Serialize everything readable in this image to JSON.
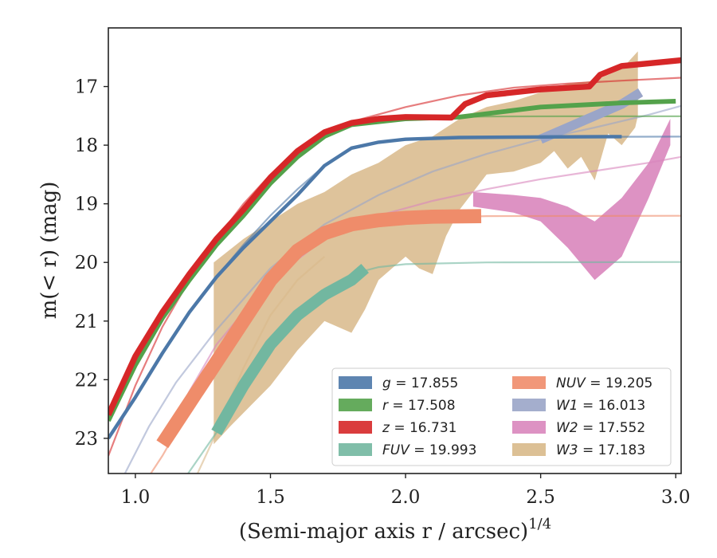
{
  "chart_data": {
    "type": "line",
    "title": "",
    "xlabel": "(Semi-major axis r / arcsec)",
    "xlabel_exponent": "1/4",
    "ylabel": "m(< r) (mag)",
    "xlim": [
      0.9,
      3.02
    ],
    "ylim": [
      23.6,
      16.0
    ],
    "y_inverted": true,
    "grid": false,
    "legend_position": "lower-right",
    "legend_columns": 2,
    "x_ticks": [
      1.0,
      1.5,
      2.0,
      2.5,
      3.0
    ],
    "x_tick_labels": [
      "1.0",
      "1.5",
      "2.0",
      "2.5",
      "3.0"
    ],
    "y_ticks": [
      17,
      18,
      19,
      20,
      21,
      22,
      23
    ],
    "y_tick_labels": [
      "17",
      "18",
      "19",
      "20",
      "21",
      "22",
      "23"
    ],
    "series": [
      {
        "band": "g",
        "name": "g = 17.855",
        "legend_var": "g",
        "legend_value": "= 17.855",
        "color": "#4c78a8",
        "data": [
          [
            0.9,
            23.0
          ],
          [
            1.0,
            22.3
          ],
          [
            1.1,
            21.55
          ],
          [
            1.2,
            20.85
          ],
          [
            1.3,
            20.25
          ],
          [
            1.4,
            19.75
          ],
          [
            1.5,
            19.3
          ],
          [
            1.6,
            18.85
          ],
          [
            1.7,
            18.35
          ],
          [
            1.8,
            18.05
          ],
          [
            1.9,
            17.95
          ],
          [
            2.0,
            17.9
          ],
          [
            2.2,
            17.87
          ],
          [
            2.5,
            17.86
          ],
          [
            2.8,
            17.855
          ]
        ],
        "band_width": 0.03,
        "model": [
          [
            0.9,
            23.0
          ],
          [
            1.0,
            22.3
          ],
          [
            1.1,
            21.55
          ],
          [
            1.2,
            20.85
          ],
          [
            1.3,
            20.25
          ],
          [
            1.4,
            19.7
          ],
          [
            1.5,
            19.2
          ],
          [
            1.6,
            18.75
          ],
          [
            1.7,
            18.35
          ],
          [
            1.8,
            18.05
          ],
          [
            1.9,
            17.95
          ],
          [
            2.0,
            17.9
          ],
          [
            2.3,
            17.87
          ],
          [
            2.6,
            17.86
          ],
          [
            3.02,
            17.855
          ]
        ]
      },
      {
        "band": "r",
        "name": "r = 17.508",
        "legend_var": "r",
        "legend_value": "= 17.508",
        "color": "#54a24b",
        "data": [
          [
            0.9,
            22.7
          ],
          [
            1.0,
            21.75
          ],
          [
            1.1,
            20.95
          ],
          [
            1.2,
            20.3
          ],
          [
            1.3,
            19.7
          ],
          [
            1.4,
            19.2
          ],
          [
            1.5,
            18.65
          ],
          [
            1.6,
            18.2
          ],
          [
            1.7,
            17.85
          ],
          [
            1.8,
            17.65
          ],
          [
            1.9,
            17.6
          ],
          [
            2.0,
            17.55
          ],
          [
            2.2,
            17.52
          ],
          [
            2.5,
            17.35
          ],
          [
            2.8,
            17.28
          ],
          [
            3.0,
            17.25
          ]
        ],
        "band_width": 0.04,
        "model": [
          [
            0.9,
            22.7
          ],
          [
            1.0,
            21.75
          ],
          [
            1.1,
            20.95
          ],
          [
            1.2,
            20.25
          ],
          [
            1.3,
            19.65
          ],
          [
            1.4,
            19.1
          ],
          [
            1.5,
            18.6
          ],
          [
            1.6,
            18.15
          ],
          [
            1.7,
            17.85
          ],
          [
            1.8,
            17.65
          ],
          [
            1.9,
            17.57
          ],
          [
            2.0,
            17.53
          ],
          [
            2.3,
            17.51
          ],
          [
            2.6,
            17.508
          ],
          [
            3.02,
            17.508
          ]
        ]
      },
      {
        "band": "z",
        "name": "z = 16.731",
        "legend_var": "z",
        "legend_value": "= 16.731",
        "color": "#d62728",
        "data": [
          [
            0.9,
            22.6
          ],
          [
            1.0,
            21.6
          ],
          [
            1.1,
            20.85
          ],
          [
            1.2,
            20.2
          ],
          [
            1.3,
            19.6
          ],
          [
            1.4,
            19.1
          ],
          [
            1.5,
            18.55
          ],
          [
            1.6,
            18.1
          ],
          [
            1.7,
            17.78
          ],
          [
            1.8,
            17.62
          ],
          [
            1.9,
            17.55
          ],
          [
            2.0,
            17.52
          ],
          [
            2.17,
            17.53
          ],
          [
            2.22,
            17.3
          ],
          [
            2.3,
            17.15
          ],
          [
            2.5,
            17.05
          ],
          [
            2.68,
            17.0
          ],
          [
            2.72,
            16.8
          ],
          [
            2.8,
            16.65
          ],
          [
            3.02,
            16.55
          ]
        ],
        "band_width": 0.05,
        "model": [
          [
            0.9,
            23.3
          ],
          [
            1.0,
            22.1
          ],
          [
            1.1,
            21.1
          ],
          [
            1.2,
            20.3
          ],
          [
            1.3,
            19.6
          ],
          [
            1.4,
            19.0
          ],
          [
            1.5,
            18.5
          ],
          [
            1.6,
            18.1
          ],
          [
            1.7,
            17.8
          ],
          [
            1.8,
            17.6
          ],
          [
            2.0,
            17.35
          ],
          [
            2.2,
            17.15
          ],
          [
            2.4,
            17.02
          ],
          [
            2.6,
            16.95
          ],
          [
            2.8,
            16.9
          ],
          [
            3.02,
            16.85
          ]
        ]
      },
      {
        "band": "FUV",
        "name": "FUV = 19.993",
        "legend_var": "FUV",
        "legend_value": "= 19.993",
        "color": "#72b7a0",
        "data": [
          [
            1.3,
            22.9
          ],
          [
            1.4,
            22.1
          ],
          [
            1.5,
            21.4
          ],
          [
            1.6,
            20.9
          ],
          [
            1.7,
            20.55
          ],
          [
            1.8,
            20.3
          ],
          [
            1.85,
            20.1
          ]
        ],
        "band_width": 0.1,
        "model": [
          [
            1.15,
            23.9
          ],
          [
            1.3,
            22.9
          ],
          [
            1.4,
            22.0
          ],
          [
            1.5,
            21.3
          ],
          [
            1.6,
            20.8
          ],
          [
            1.7,
            20.45
          ],
          [
            1.8,
            20.2
          ],
          [
            1.9,
            20.08
          ],
          [
            2.0,
            20.03
          ],
          [
            2.3,
            20.0
          ],
          [
            3.02,
            19.993
          ]
        ]
      },
      {
        "band": "NUV",
        "name": "NUV = 19.205",
        "legend_var": "NUV",
        "legend_value": "= 19.205",
        "color": "#ef8c6a",
        "data": [
          [
            1.1,
            23.1
          ],
          [
            1.2,
            22.4
          ],
          [
            1.3,
            21.7
          ],
          [
            1.4,
            21.0
          ],
          [
            1.5,
            20.3
          ],
          [
            1.6,
            19.8
          ],
          [
            1.7,
            19.5
          ],
          [
            1.8,
            19.35
          ],
          [
            1.9,
            19.28
          ],
          [
            2.0,
            19.24
          ],
          [
            2.1,
            19.22
          ],
          [
            2.28,
            19.21
          ]
        ],
        "band_width": 0.12,
        "model": [
          [
            1.0,
            24.0
          ],
          [
            1.1,
            23.3
          ],
          [
            1.2,
            22.5
          ],
          [
            1.3,
            21.7
          ],
          [
            1.4,
            21.0
          ],
          [
            1.5,
            20.35
          ],
          [
            1.6,
            19.85
          ],
          [
            1.7,
            19.55
          ],
          [
            1.8,
            19.38
          ],
          [
            2.0,
            19.25
          ],
          [
            2.3,
            19.21
          ],
          [
            3.02,
            19.205
          ]
        ]
      },
      {
        "band": "W1",
        "name": "W1 = 16.013",
        "legend_var": "W1",
        "legend_value": "= 16.013",
        "color": "#9aa5c8",
        "data": [
          [
            2.5,
            17.9
          ],
          [
            2.6,
            17.7
          ],
          [
            2.7,
            17.5
          ],
          [
            2.8,
            17.3
          ],
          [
            2.87,
            17.1
          ]
        ],
        "band_width": 0.08,
        "model": [
          [
            0.95,
            23.7
          ],
          [
            1.05,
            22.8
          ],
          [
            1.15,
            22.05
          ],
          [
            1.3,
            21.15
          ],
          [
            1.5,
            20.1
          ],
          [
            1.7,
            19.35
          ],
          [
            1.9,
            18.85
          ],
          [
            2.1,
            18.45
          ],
          [
            2.3,
            18.15
          ],
          [
            2.5,
            17.9
          ],
          [
            2.7,
            17.7
          ],
          [
            2.9,
            17.48
          ],
          [
            3.02,
            17.33
          ]
        ]
      },
      {
        "band": "W2",
        "name": "W2 = 17.552",
        "legend_var": "W2",
        "legend_value": "= 17.552",
        "color": "#d986bd",
        "upper": [
          [
            2.25,
            18.8
          ],
          [
            2.4,
            18.85
          ],
          [
            2.5,
            18.9
          ],
          [
            2.6,
            19.05
          ],
          [
            2.7,
            19.3
          ],
          [
            2.8,
            18.9
          ],
          [
            2.9,
            18.3
          ],
          [
            2.98,
            17.55
          ]
        ],
        "lower": [
          [
            2.25,
            19.05
          ],
          [
            2.4,
            19.15
          ],
          [
            2.5,
            19.3
          ],
          [
            2.6,
            19.75
          ],
          [
            2.7,
            20.3
          ],
          [
            2.8,
            19.9
          ],
          [
            2.9,
            18.9
          ],
          [
            2.98,
            18.0
          ]
        ],
        "model": [
          [
            1.1,
            23.1
          ],
          [
            1.2,
            22.2
          ],
          [
            1.3,
            21.4
          ],
          [
            1.5,
            20.3
          ],
          [
            1.7,
            19.6
          ],
          [
            1.9,
            19.2
          ],
          [
            2.1,
            18.95
          ],
          [
            2.3,
            18.75
          ],
          [
            2.5,
            18.58
          ],
          [
            2.7,
            18.44
          ],
          [
            2.9,
            18.3
          ],
          [
            3.02,
            18.2
          ]
        ]
      },
      {
        "band": "W3",
        "name": "W3 = 17.183",
        "legend_var": "W3",
        "legend_value": "= 17.183",
        "color": "#d8b98a",
        "upper": [
          [
            1.29,
            20.0
          ],
          [
            1.4,
            19.6
          ],
          [
            1.5,
            19.3
          ],
          [
            1.6,
            19.0
          ],
          [
            1.7,
            18.8
          ],
          [
            1.8,
            18.5
          ],
          [
            1.9,
            18.3
          ],
          [
            2.0,
            18.0
          ],
          [
            2.1,
            17.85
          ],
          [
            2.2,
            17.55
          ],
          [
            2.3,
            17.35
          ],
          [
            2.4,
            17.25
          ],
          [
            2.5,
            17.1
          ],
          [
            2.6,
            16.95
          ],
          [
            2.7,
            16.9
          ],
          [
            2.8,
            16.7
          ],
          [
            2.86,
            16.4
          ]
        ],
        "lower": [
          [
            1.29,
            23.1
          ],
          [
            1.35,
            22.8
          ],
          [
            1.5,
            22.1
          ],
          [
            1.6,
            21.5
          ],
          [
            1.7,
            21.0
          ],
          [
            1.8,
            21.2
          ],
          [
            1.85,
            20.8
          ],
          [
            1.9,
            20.3
          ],
          [
            2.0,
            19.9
          ],
          [
            2.05,
            20.1
          ],
          [
            2.1,
            20.2
          ],
          [
            2.15,
            19.55
          ],
          [
            2.2,
            19.1
          ],
          [
            2.3,
            18.5
          ],
          [
            2.4,
            18.45
          ],
          [
            2.5,
            18.3
          ],
          [
            2.55,
            18.1
          ],
          [
            2.6,
            18.4
          ],
          [
            2.65,
            18.2
          ],
          [
            2.7,
            18.6
          ],
          [
            2.75,
            17.8
          ],
          [
            2.8,
            18.0
          ],
          [
            2.85,
            17.7
          ],
          [
            2.86,
            17.5
          ]
        ],
        "model": [
          [
            1.2,
            23.9
          ],
          [
            1.3,
            22.9
          ],
          [
            1.4,
            21.8
          ],
          [
            1.5,
            20.9
          ],
          [
            1.6,
            20.3
          ],
          [
            1.7,
            19.9
          ]
        ]
      }
    ]
  }
}
